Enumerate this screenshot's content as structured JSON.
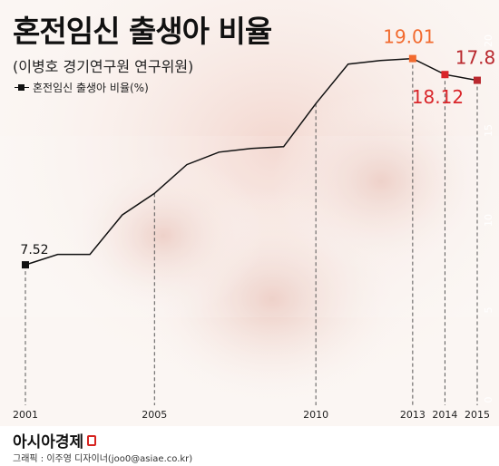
{
  "header": {
    "title": "혼전임신 출생아 비율",
    "subtitle": "(이병호 경기연구원 연구위원)",
    "legend_label": "혼전임신 출생아 비율(%)"
  },
  "chart_data": {
    "type": "line",
    "x": [
      2001,
      2002,
      2003,
      2004,
      2005,
      2006,
      2007,
      2008,
      2009,
      2010,
      2011,
      2012,
      2013,
      2014,
      2015
    ],
    "x_tick_labels": [
      "2001",
      "2005",
      "2010",
      "2013",
      "2014",
      "2015"
    ],
    "x_ticks": [
      2001,
      2005,
      2010,
      2013,
      2014,
      2015
    ],
    "series": [
      {
        "name": "혼전임신 출생아 비율(%)",
        "values": [
          7.52,
          8.1,
          8.1,
          10.3,
          11.5,
          13.1,
          13.8,
          14.0,
          14.1,
          16.5,
          18.7,
          18.9,
          19.01,
          18.12,
          17.8
        ]
      }
    ],
    "labeled_points": [
      {
        "x": 2001,
        "y": 7.52,
        "label": "7.52"
      },
      {
        "x": 2013,
        "y": 19.01,
        "label": "19.01"
      },
      {
        "x": 2014,
        "y": 18.12,
        "label": "18.12"
      },
      {
        "x": 2015,
        "y": 17.8,
        "label": "17.8"
      }
    ],
    "y_ticks": [
      0,
      5,
      10,
      15,
      20
    ],
    "ylim": [
      0,
      20
    ],
    "xlim": [
      2001,
      2015
    ],
    "grid": false,
    "colors": {
      "line": "#111111",
      "highlight_2013": "#f26a2e",
      "highlight_2014": "#d9252a",
      "highlight_2015": "#b9282e",
      "axis_text": "#222222",
      "y_tick_text": "#ffffff"
    }
  },
  "footer": {
    "brand": "아시아경제",
    "credit": "그래픽 : 이주영 디자이너(joo0@asiae.co.kr)"
  }
}
